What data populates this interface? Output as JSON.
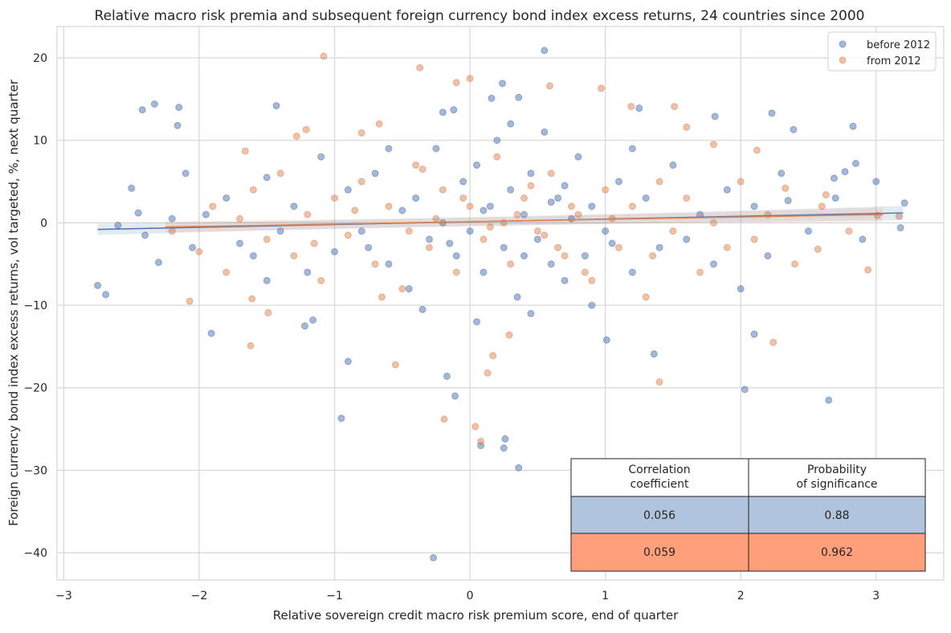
{
  "chart_data": {
    "type": "scatter",
    "title": "Relative macro risk premia and subsequent foreign currency bond index excess returns, 24 countries since 2000",
    "xlabel": "Relative sovereign credit macro risk premium score, end of quarter",
    "ylabel": "Foreign currency bond index excess returns, vol targeted, %, next quarter",
    "xlim": [
      -3.05,
      3.5
    ],
    "ylim": [
      -43.3,
      23.8
    ],
    "xticks": [
      -3,
      -2,
      -1,
      0,
      1,
      2,
      3
    ],
    "yticks": [
      -40,
      -30,
      -20,
      -10,
      0,
      10,
      20
    ],
    "xtick_labels": [
      "−3",
      "−2",
      "−1",
      "0",
      "1",
      "2",
      "3"
    ],
    "ytick_labels": [
      "−40",
      "−30",
      "−20",
      "−10",
      "0",
      "10",
      "20"
    ],
    "grid": true,
    "legend_position": "top-right",
    "series": [
      {
        "name": "before 2012",
        "color": "#4c72b0",
        "regression": {
          "x": [
            -2.75,
            3.2
          ],
          "y": [
            -0.8,
            1.2
          ]
        },
        "points": [
          [
            0.55,
            20.9
          ],
          [
            -2.75,
            -7.6
          ],
          [
            -2.69,
            -8.7
          ],
          [
            -2.42,
            13.7
          ],
          [
            -2.33,
            14.4
          ],
          [
            -2.15,
            14.0
          ],
          [
            -2.16,
            11.8
          ],
          [
            -1.43,
            14.2
          ],
          [
            -1.91,
            -13.4
          ],
          [
            -1.22,
            -12.5
          ],
          [
            -1.16,
            -11.8
          ],
          [
            -0.9,
            -16.8
          ],
          [
            -0.95,
            -23.7
          ],
          [
            -0.17,
            -18.6
          ],
          [
            -0.11,
            -21.0
          ],
          [
            -0.27,
            -40.6
          ],
          [
            0.08,
            -27.0
          ],
          [
            0.25,
            -27.3
          ],
          [
            0.26,
            -26.2
          ],
          [
            0.36,
            -29.7
          ],
          [
            2.03,
            -20.2
          ],
          [
            2.65,
            -21.5
          ],
          [
            2.1,
            -13.5
          ],
          [
            1.36,
            -15.9
          ],
          [
            1.01,
            -14.2
          ],
          [
            0.24,
            16.9
          ],
          [
            3.21,
            2.4
          ],
          [
            3.18,
            -0.6
          ],
          [
            2.23,
            13.3
          ],
          [
            2.39,
            11.3
          ],
          [
            2.83,
            11.7
          ],
          [
            1.81,
            12.9
          ],
          [
            0.36,
            15.2
          ],
          [
            0.16,
            15.1
          ],
          [
            1.25,
            13.9
          ],
          [
            -0.2,
            13.4
          ],
          [
            -0.12,
            13.7
          ],
          [
            2.85,
            7.2
          ],
          [
            2.77,
            6.2
          ],
          [
            2.69,
            5.4
          ],
          [
            2.35,
            2.7
          ],
          [
            -2.6,
            -0.3
          ],
          [
            -2.5,
            4.2
          ],
          [
            -2.45,
            1.2
          ],
          [
            -2.4,
            -1.5
          ],
          [
            -2.3,
            -4.8
          ],
          [
            -2.2,
            0.5
          ],
          [
            -2.1,
            6
          ],
          [
            -2.05,
            -3
          ],
          [
            -1.95,
            1
          ],
          [
            -1.8,
            3
          ],
          [
            -1.7,
            -2.5
          ],
          [
            -1.6,
            -4
          ],
          [
            -1.5,
            5.5
          ],
          [
            -1.4,
            -1
          ],
          [
            -1.3,
            2
          ],
          [
            -1.2,
            -6
          ],
          [
            -1.1,
            8
          ],
          [
            -1.0,
            -3.5
          ],
          [
            -0.9,
            4
          ],
          [
            -0.8,
            -1
          ],
          [
            -0.7,
            6
          ],
          [
            -0.6,
            -5
          ],
          [
            -0.5,
            1.5
          ],
          [
            -0.45,
            -8
          ],
          [
            -0.4,
            3
          ],
          [
            -0.3,
            -2
          ],
          [
            -0.25,
            9
          ],
          [
            -0.2,
            0
          ],
          [
            -0.1,
            -4
          ],
          [
            -0.05,
            5
          ],
          [
            0,
            -1
          ],
          [
            0.05,
            7
          ],
          [
            0.1,
            -6
          ],
          [
            0.15,
            2
          ],
          [
            0.2,
            10
          ],
          [
            0.25,
            -3
          ],
          [
            0.3,
            4
          ],
          [
            0.35,
            -9
          ],
          [
            0.4,
            1
          ],
          [
            0.45,
            6
          ],
          [
            0.5,
            -2
          ],
          [
            0.55,
            11
          ],
          [
            0.6,
            -5
          ],
          [
            0.65,
            3
          ],
          [
            0.7,
            -7
          ],
          [
            0.75,
            0.5
          ],
          [
            0.8,
            8
          ],
          [
            0.85,
            -4
          ],
          [
            0.9,
            2
          ],
          [
            1.0,
            -1
          ],
          [
            1.1,
            5
          ],
          [
            1.2,
            -6
          ],
          [
            1.3,
            3
          ],
          [
            1.4,
            -3
          ],
          [
            1.5,
            7
          ],
          [
            1.6,
            -2
          ],
          [
            1.7,
            1
          ],
          [
            1.8,
            -5
          ],
          [
            1.9,
            4
          ],
          [
            2.0,
            -8
          ],
          [
            2.1,
            2
          ],
          [
            2.2,
            -4
          ],
          [
            2.3,
            6
          ],
          [
            2.5,
            -1
          ],
          [
            2.7,
            3
          ],
          [
            2.9,
            -2
          ],
          [
            3.0,
            5
          ],
          [
            -0.35,
            -10.5
          ],
          [
            0.05,
            -12
          ],
          [
            0.45,
            -11
          ],
          [
            0.9,
            -10
          ],
          [
            -0.6,
            9
          ],
          [
            0.3,
            12
          ],
          [
            1.2,
            9
          ],
          [
            -1.5,
            -7
          ],
          [
            0.7,
            4.5
          ],
          [
            0.1,
            1.5
          ],
          [
            -0.15,
            -2.5
          ],
          [
            0.4,
            -4
          ],
          [
            0.6,
            2.5
          ],
          [
            1.05,
            -2.5
          ],
          [
            -0.75,
            -3
          ]
        ]
      },
      {
        "name": "from 2012",
        "color": "#dd8452",
        "regression": {
          "x": [
            -2.25,
            3.05
          ],
          "y": [
            -0.5,
            1.0
          ]
        },
        "points": [
          [
            -1.08,
            20.2
          ],
          [
            -0.37,
            18.8
          ],
          [
            0,
            17.5
          ],
          [
            -0.1,
            17.0
          ],
          [
            0.97,
            16.3
          ],
          [
            0.59,
            16.6
          ],
          [
            -1.62,
            -14.9
          ],
          [
            -1.61,
            -9.2
          ],
          [
            -1.49,
            -10.9
          ],
          [
            -2.07,
            -9.5
          ],
          [
            -0.55,
            -17.2
          ],
          [
            -0.19,
            -23.8
          ],
          [
            0.04,
            -24.7
          ],
          [
            0.08,
            -26.5
          ],
          [
            0.13,
            -18.2
          ],
          [
            0.17,
            -16.1
          ],
          [
            0.29,
            -13.6
          ],
          [
            1.4,
            -19.3
          ],
          [
            2.24,
            -14.5
          ],
          [
            2.94,
            -5.7
          ],
          [
            2.57,
            -3.2
          ],
          [
            1.51,
            14.1
          ],
          [
            1.19,
            14.1
          ],
          [
            1.6,
            11.6
          ],
          [
            1.8,
            9.5
          ],
          [
            2.12,
            8.8
          ],
          [
            2.33,
            4.2
          ],
          [
            2.63,
            3.4
          ],
          [
            3.17,
            0.8
          ],
          [
            3.01,
            0.9
          ],
          [
            -1.66,
            8.7
          ],
          [
            -1.28,
            10.5
          ],
          [
            -1.21,
            11.3
          ],
          [
            -0.8,
            10.9
          ],
          [
            -0.67,
            12.0
          ],
          [
            -2.2,
            -1
          ],
          [
            -2.0,
            -3.5
          ],
          [
            -1.9,
            2
          ],
          [
            -1.8,
            -6
          ],
          [
            -1.7,
            0.5
          ],
          [
            -1.6,
            4
          ],
          [
            -1.5,
            -2
          ],
          [
            -1.4,
            6
          ],
          [
            -1.3,
            -4
          ],
          [
            -1.2,
            1
          ],
          [
            -1.1,
            -7
          ],
          [
            -1.0,
            3
          ],
          [
            -0.9,
            -1.5
          ],
          [
            -0.8,
            5
          ],
          [
            -0.7,
            -5
          ],
          [
            -0.6,
            2
          ],
          [
            -0.5,
            -8
          ],
          [
            -0.4,
            7
          ],
          [
            -0.3,
            -3
          ],
          [
            -0.2,
            4
          ],
          [
            -0.1,
            -6
          ],
          [
            0,
            2
          ],
          [
            0.1,
            -2
          ],
          [
            0.2,
            8
          ],
          [
            0.3,
            -5
          ],
          [
            0.4,
            3
          ],
          [
            0.5,
            -1
          ],
          [
            0.6,
            6
          ],
          [
            0.7,
            -4
          ],
          [
            0.8,
            1
          ],
          [
            0.9,
            -7
          ],
          [
            1.0,
            4
          ],
          [
            1.1,
            -3
          ],
          [
            1.2,
            2
          ],
          [
            1.3,
            -9
          ],
          [
            1.4,
            5
          ],
          [
            1.5,
            -1
          ],
          [
            1.6,
            3
          ],
          [
            1.7,
            -6
          ],
          [
            1.8,
            0
          ],
          [
            1.9,
            -3
          ],
          [
            2.0,
            5
          ],
          [
            2.1,
            -2
          ],
          [
            2.2,
            1
          ],
          [
            2.4,
            -5
          ],
          [
            2.6,
            2
          ],
          [
            2.8,
            -1
          ],
          [
            -0.25,
            0.5
          ],
          [
            0.15,
            -0.5
          ],
          [
            0.35,
            1
          ],
          [
            0.55,
            -1.5
          ],
          [
            -0.45,
            -1
          ],
          [
            0.75,
            2
          ],
          [
            -0.05,
            3
          ],
          [
            0.25,
            0
          ],
          [
            0.65,
            -3
          ],
          [
            -0.85,
            1.5
          ],
          [
            1.05,
            0.5
          ],
          [
            -1.15,
            -2.5
          ],
          [
            0.45,
            4.5
          ],
          [
            -0.35,
            6.5
          ],
          [
            0.85,
            -6
          ],
          [
            1.35,
            -4
          ],
          [
            -0.65,
            -9
          ]
        ]
      }
    ],
    "legend": [
      "before 2012",
      "from 2012"
    ],
    "table": {
      "headers": [
        "Correlation\ncoefficient",
        "Probability\nof significance"
      ],
      "header_lines": [
        [
          "Correlation",
          "coefficient"
        ],
        [
          "Probability",
          "of significance"
        ]
      ],
      "rows": [
        {
          "values": [
            "0.056",
            "0.88"
          ],
          "color": "#b0c4de"
        },
        {
          "values": [
            "0.059",
            "0.962"
          ],
          "color": "#ffa07a"
        }
      ]
    }
  }
}
